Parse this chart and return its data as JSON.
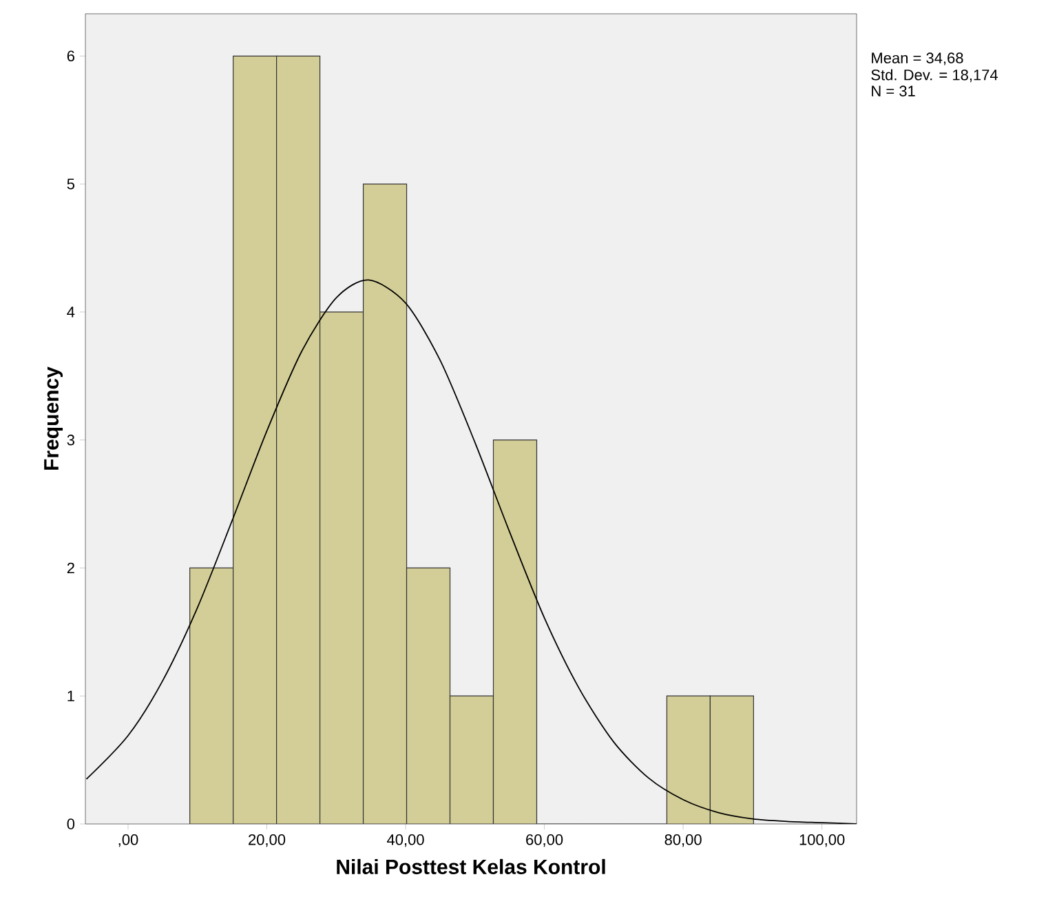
{
  "chart_data": {
    "type": "histogram",
    "xlabel": "Nilai Posttest Kelas Kontrol",
    "ylabel": "Frequency",
    "annotations": [
      "Mean = 34,68",
      "Std. Dev. = 18,174",
      "N = 31"
    ],
    "bins": [
      8.9,
      15.15,
      21.4,
      27.65,
      33.9,
      40.15,
      46.4,
      52.65,
      58.9,
      65.15,
      71.4,
      77.65,
      83.9,
      90.15
    ],
    "values": [
      2,
      6,
      6,
      4,
      5,
      2,
      1,
      3,
      0,
      0,
      0,
      1,
      1
    ],
    "color": "#d3ce97",
    "series": [
      {
        "type": "line",
        "color": "#000000",
        "x": [
          -6,
          0,
          5,
          10,
          15,
          20,
          25,
          30,
          34.68,
          40,
          45,
          50,
          55,
          60,
          65,
          70,
          75,
          80,
          85,
          90,
          95,
          100,
          105
        ],
        "values": [
          0.35,
          0.69,
          1.12,
          1.69,
          2.37,
          3.07,
          3.69,
          4.11,
          4.25,
          4.07,
          3.62,
          2.98,
          2.28,
          1.61,
          1.06,
          0.64,
          0.36,
          0.19,
          0.09,
          0.04,
          0.02,
          0.01,
          0.0
        ]
      }
    ],
    "xlim": [
      -6.15,
      105.0
    ],
    "ylim": [
      0,
      6.33
    ],
    "xticks": [
      {
        "value": 0,
        "label": ",00"
      },
      {
        "value": 20,
        "label": "20,00"
      },
      {
        "value": 40,
        "label": "40,00"
      },
      {
        "value": 60,
        "label": "60,00"
      },
      {
        "value": 80,
        "label": "80,00"
      },
      {
        "value": 100,
        "label": "100,00"
      }
    ],
    "yticks": [
      0,
      1,
      2,
      3,
      4,
      5,
      6
    ],
    "grid": false
  }
}
